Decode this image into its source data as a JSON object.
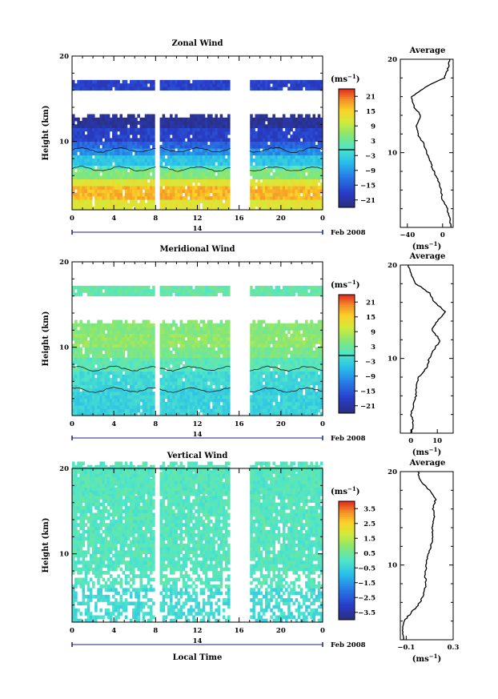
{
  "chart_data": [
    {
      "type": "heatmap",
      "title": "Zonal Wind",
      "ylabel": "Height (km)",
      "ylim": [
        2,
        20
      ],
      "yticks": [
        "20",
        "10"
      ],
      "xlim": [
        0,
        24
      ],
      "xticks": [
        "0",
        "4",
        "8",
        "12",
        "16",
        "20",
        "0"
      ],
      "day_label": "14",
      "date_label": "Feb 2008",
      "colorbar": {
        "unit": "(ms",
        "unit_exp": "−1",
        "unit_close": ")",
        "range": [
          -24,
          24
        ],
        "ticks": [
          "21",
          "15",
          "9",
          "3",
          "−3",
          "−9",
          "−15",
          "−21"
        ]
      },
      "gaps_hours": [
        [
          8.0,
          8.4
        ],
        [
          15.2,
          17.0
        ]
      ],
      "layers": [
        {
          "h0": 2,
          "h1": 3,
          "v": 12
        },
        {
          "h0": 3,
          "h1": 4.5,
          "v": 17
        },
        {
          "h0": 4.5,
          "h1": 5.5,
          "v": 12
        },
        {
          "h0": 5.5,
          "h1": 6.5,
          "v": 5
        },
        {
          "h0": 6.5,
          "h1": 7.2,
          "v": 0
        },
        {
          "h0": 7.2,
          "h1": 8.2,
          "v": -5
        },
        {
          "h0": 8.2,
          "h1": 9.0,
          "v": -10
        },
        {
          "h0": 9.0,
          "h1": 10.0,
          "v": -14
        },
        {
          "h0": 10.0,
          "h1": 11.5,
          "v": -18
        },
        {
          "h0": 11.5,
          "h1": 12.5,
          "v": -22
        }
      ],
      "upper_layer": {
        "h0": 16.0,
        "h1": 17.0,
        "v": -18
      },
      "average": {
        "title": "Average",
        "xlim": [
          -48,
          12
        ],
        "xticks": [
          "−40",
          "0"
        ],
        "xlabel": "(ms",
        "xlabel_exp": "−1",
        "xlabel_close": ")",
        "yticks": [
          "20",
          "10"
        ],
        "height_km": [
          2,
          3,
          4,
          5,
          6,
          7,
          8,
          9,
          10,
          11,
          12,
          13,
          14,
          15,
          16,
          17,
          18,
          19,
          20
        ],
        "values": [
          10,
          8,
          5,
          0,
          -2,
          -5,
          -10,
          -14,
          -18,
          -22,
          -28,
          -30,
          -25,
          -33,
          -35,
          -20,
          2,
          6,
          8
        ]
      }
    },
    {
      "type": "heatmap",
      "title": "Meridional Wind",
      "ylabel": "Height (km)",
      "ylim": [
        2,
        20
      ],
      "yticks": [
        "20",
        "10"
      ],
      "xlim": [
        0,
        24
      ],
      "xticks": [
        "0",
        "4",
        "8",
        "12",
        "16",
        "20",
        "0"
      ],
      "day_label": "14",
      "date_label": "Feb 2008",
      "colorbar": {
        "unit": "(ms",
        "unit_exp": "−1",
        "unit_close": ")",
        "range": [
          -24,
          24
        ],
        "ticks": [
          "21",
          "15",
          "9",
          "3",
          "−3",
          "−9",
          "−15",
          "−21"
        ]
      },
      "gaps_hours": [
        [
          8.0,
          8.4
        ],
        [
          15.2,
          17.0
        ]
      ],
      "layers": [
        {
          "h0": 2,
          "h1": 5,
          "v": -3
        },
        {
          "h0": 5,
          "h1": 7,
          "v": -2
        },
        {
          "h0": 7,
          "h1": 8.5,
          "v": 1
        },
        {
          "h0": 8.5,
          "h1": 10,
          "v": 4
        },
        {
          "h0": 10,
          "h1": 11.5,
          "v": 6
        },
        {
          "h0": 11.5,
          "h1": 12.5,
          "v": 5
        }
      ],
      "upper_layer": {
        "h0": 16.0,
        "h1": 17.0,
        "v": 2
      },
      "average": {
        "title": "Average",
        "xlim": [
          -4,
          16
        ],
        "xticks": [
          "0",
          "10"
        ],
        "xlabel": "(ms",
        "xlabel_exp": "−1",
        "xlabel_close": ")",
        "yticks": [
          "20",
          "10"
        ],
        "height_km": [
          2,
          3,
          4,
          5,
          6,
          7,
          8,
          9,
          10,
          11,
          12,
          13,
          14,
          15,
          16,
          17,
          18,
          19,
          20
        ],
        "values": [
          0,
          1,
          0,
          1,
          2,
          2,
          3,
          6,
          7,
          9,
          11,
          8,
          10,
          13,
          9,
          7,
          2,
          0,
          -1
        ]
      }
    },
    {
      "type": "heatmap",
      "title": "Vertical Wind",
      "ylabel": "Height (km)",
      "ylim": [
        2,
        20
      ],
      "yticks": [
        "20",
        "10"
      ],
      "xlim": [
        0,
        24
      ],
      "xticks": [
        "0",
        "4",
        "8",
        "12",
        "16",
        "20",
        "0"
      ],
      "day_label": "14",
      "date_label": "Feb 2008",
      "xlabel": "Local Time",
      "colorbar": {
        "unit": "(ms",
        "unit_exp": "−1",
        "unit_close": ")",
        "range": [
          -4,
          4
        ],
        "ticks": [
          "3.5",
          "2.5",
          "1.5",
          "0.5",
          "−0.5",
          "−1.5",
          "−2.5",
          "−3.5"
        ]
      },
      "gaps_hours": [
        [
          8.0,
          8.4
        ],
        [
          15.2,
          17.0
        ]
      ],
      "layers": [
        {
          "h0": 2,
          "h1": 6,
          "v": -0.3
        },
        {
          "h0": 6,
          "h1": 20,
          "v": 0.1
        }
      ],
      "upper_layer": {
        "h0": 17.0,
        "h1": 19.8,
        "v": 0.1
      },
      "average": {
        "title": "Average",
        "xlim": [
          -0.15,
          0.3
        ],
        "xticks": [
          "−0.1",
          "0.3"
        ],
        "xlabel": "(ms",
        "xlabel_exp": "−1",
        "xlabel_close": ")",
        "yticks": [
          "20",
          "10"
        ],
        "height_km": [
          2,
          3,
          4,
          5,
          6,
          7,
          8,
          9,
          10,
          11,
          12,
          13,
          14,
          15,
          16,
          17,
          18,
          19,
          20
        ],
        "values": [
          -0.12,
          -0.13,
          -0.12,
          -0.05,
          0.02,
          0.05,
          0.07,
          0.06,
          0.07,
          0.08,
          0.11,
          0.13,
          0.12,
          0.14,
          0.13,
          0.15,
          0.1,
          0.02,
          0.0
        ]
      }
    }
  ]
}
